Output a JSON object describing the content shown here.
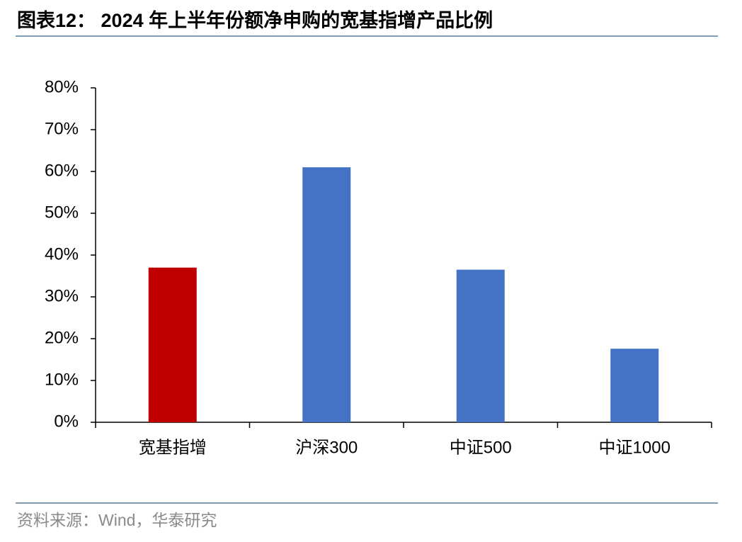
{
  "chart_data": {
    "type": "bar",
    "title": "图表12： 2024 年上半年份额净申购的宽基指增产品比例",
    "source": "资料来源：Wind，华泰研究",
    "categories": [
      "宽基指增",
      "沪深300",
      "中证500",
      "中证1000"
    ],
    "values": [
      37,
      61,
      36.5,
      17.6
    ],
    "colors": [
      "#c00000",
      "#4472c4",
      "#4472c4",
      "#4472c4"
    ],
    "ylim": [
      0,
      80
    ],
    "yticks": [
      {
        "value": 0,
        "label": "0%"
      },
      {
        "value": 10,
        "label": "10%"
      },
      {
        "value": 20,
        "label": "20%"
      },
      {
        "value": 30,
        "label": "30%"
      },
      {
        "value": 40,
        "label": "40%"
      },
      {
        "value": 50,
        "label": "50%"
      },
      {
        "value": 60,
        "label": "60%"
      },
      {
        "value": 70,
        "label": "70%"
      },
      {
        "value": 80,
        "label": "80%"
      }
    ],
    "grid": false
  }
}
